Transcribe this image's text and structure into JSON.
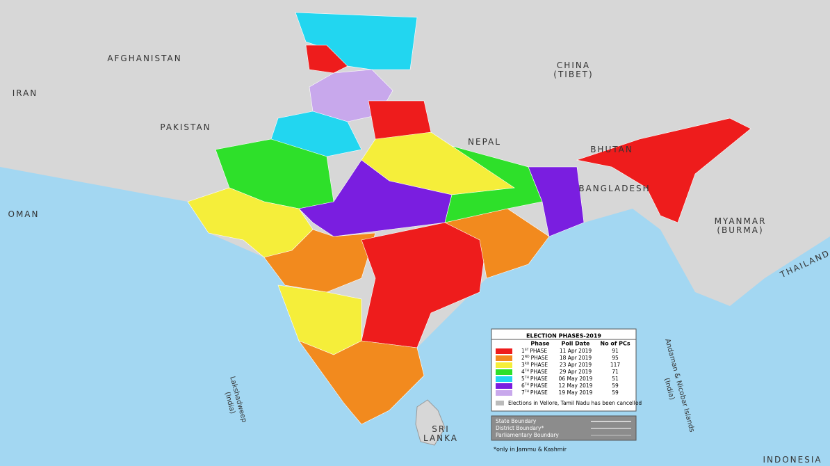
{
  "map_labels": {
    "afghanistan": "AFGHANISTAN",
    "iran": "IRAN",
    "pakistan": "PAKISTAN",
    "china": "CHINA",
    "tibet": "(TIBET)",
    "nepal": "NEPAL",
    "bhutan": "BHUTAN",
    "bangladesh": "BANGLADESH",
    "myanmar": "MYANMAR",
    "burma": "(BURMA)",
    "thailand": "THAILAND",
    "oman": "OMAN",
    "sri": "SRI",
    "lanka": "LANKA",
    "indonesia": "INDONESIA",
    "lakshadweep": "Lakshadweep",
    "lakshadweep_country": "(India)",
    "andaman": "Andaman & Nicobar Islands",
    "andaman_country": "(India)"
  },
  "legend": {
    "title": "ELECTION PHASES-2019",
    "headers": [
      "Phase",
      "Poll Date",
      "No of PCs"
    ],
    "rows": [
      {
        "number": "1",
        "suffix": "ST",
        "phase": "PHASE",
        "date": "11 Apr 2019",
        "pcs": 91,
        "color": "#ee1c1c"
      },
      {
        "number": "2",
        "suffix": "ND",
        "phase": "PHASE",
        "date": "18 Apr 2019",
        "pcs": 95,
        "color": "#f28a1e"
      },
      {
        "number": "3",
        "suffix": "RD",
        "phase": "PHASE",
        "date": "23 Apr 2019",
        "pcs": 117,
        "color": "#f5ee3a"
      },
      {
        "number": "4",
        "suffix": "TH",
        "phase": "PHASE",
        "date": "29 Apr 2019",
        "pcs": 71,
        "color": "#2ee02a"
      },
      {
        "number": "5",
        "suffix": "TH",
        "phase": "PHASE",
        "date": "06 May 2019",
        "pcs": 51,
        "color": "#22d6f0"
      },
      {
        "number": "6",
        "suffix": "TH",
        "phase": "PHASE",
        "date": "12 May 2019",
        "pcs": 59,
        "color": "#7a1ee0"
      },
      {
        "number": "7",
        "suffix": "TH",
        "phase": "PHASE",
        "date": "19 May 2019",
        "pcs": 59,
        "color": "#c8a8ec"
      }
    ],
    "note": "Elections in Vellore, Tamil Nadu has been cancelled"
  },
  "boundaries": [
    "State Boundary",
    "District Boundary*",
    "Parliamentary Boundary"
  ],
  "footnote": "*only in Jammu & Kashmir"
}
